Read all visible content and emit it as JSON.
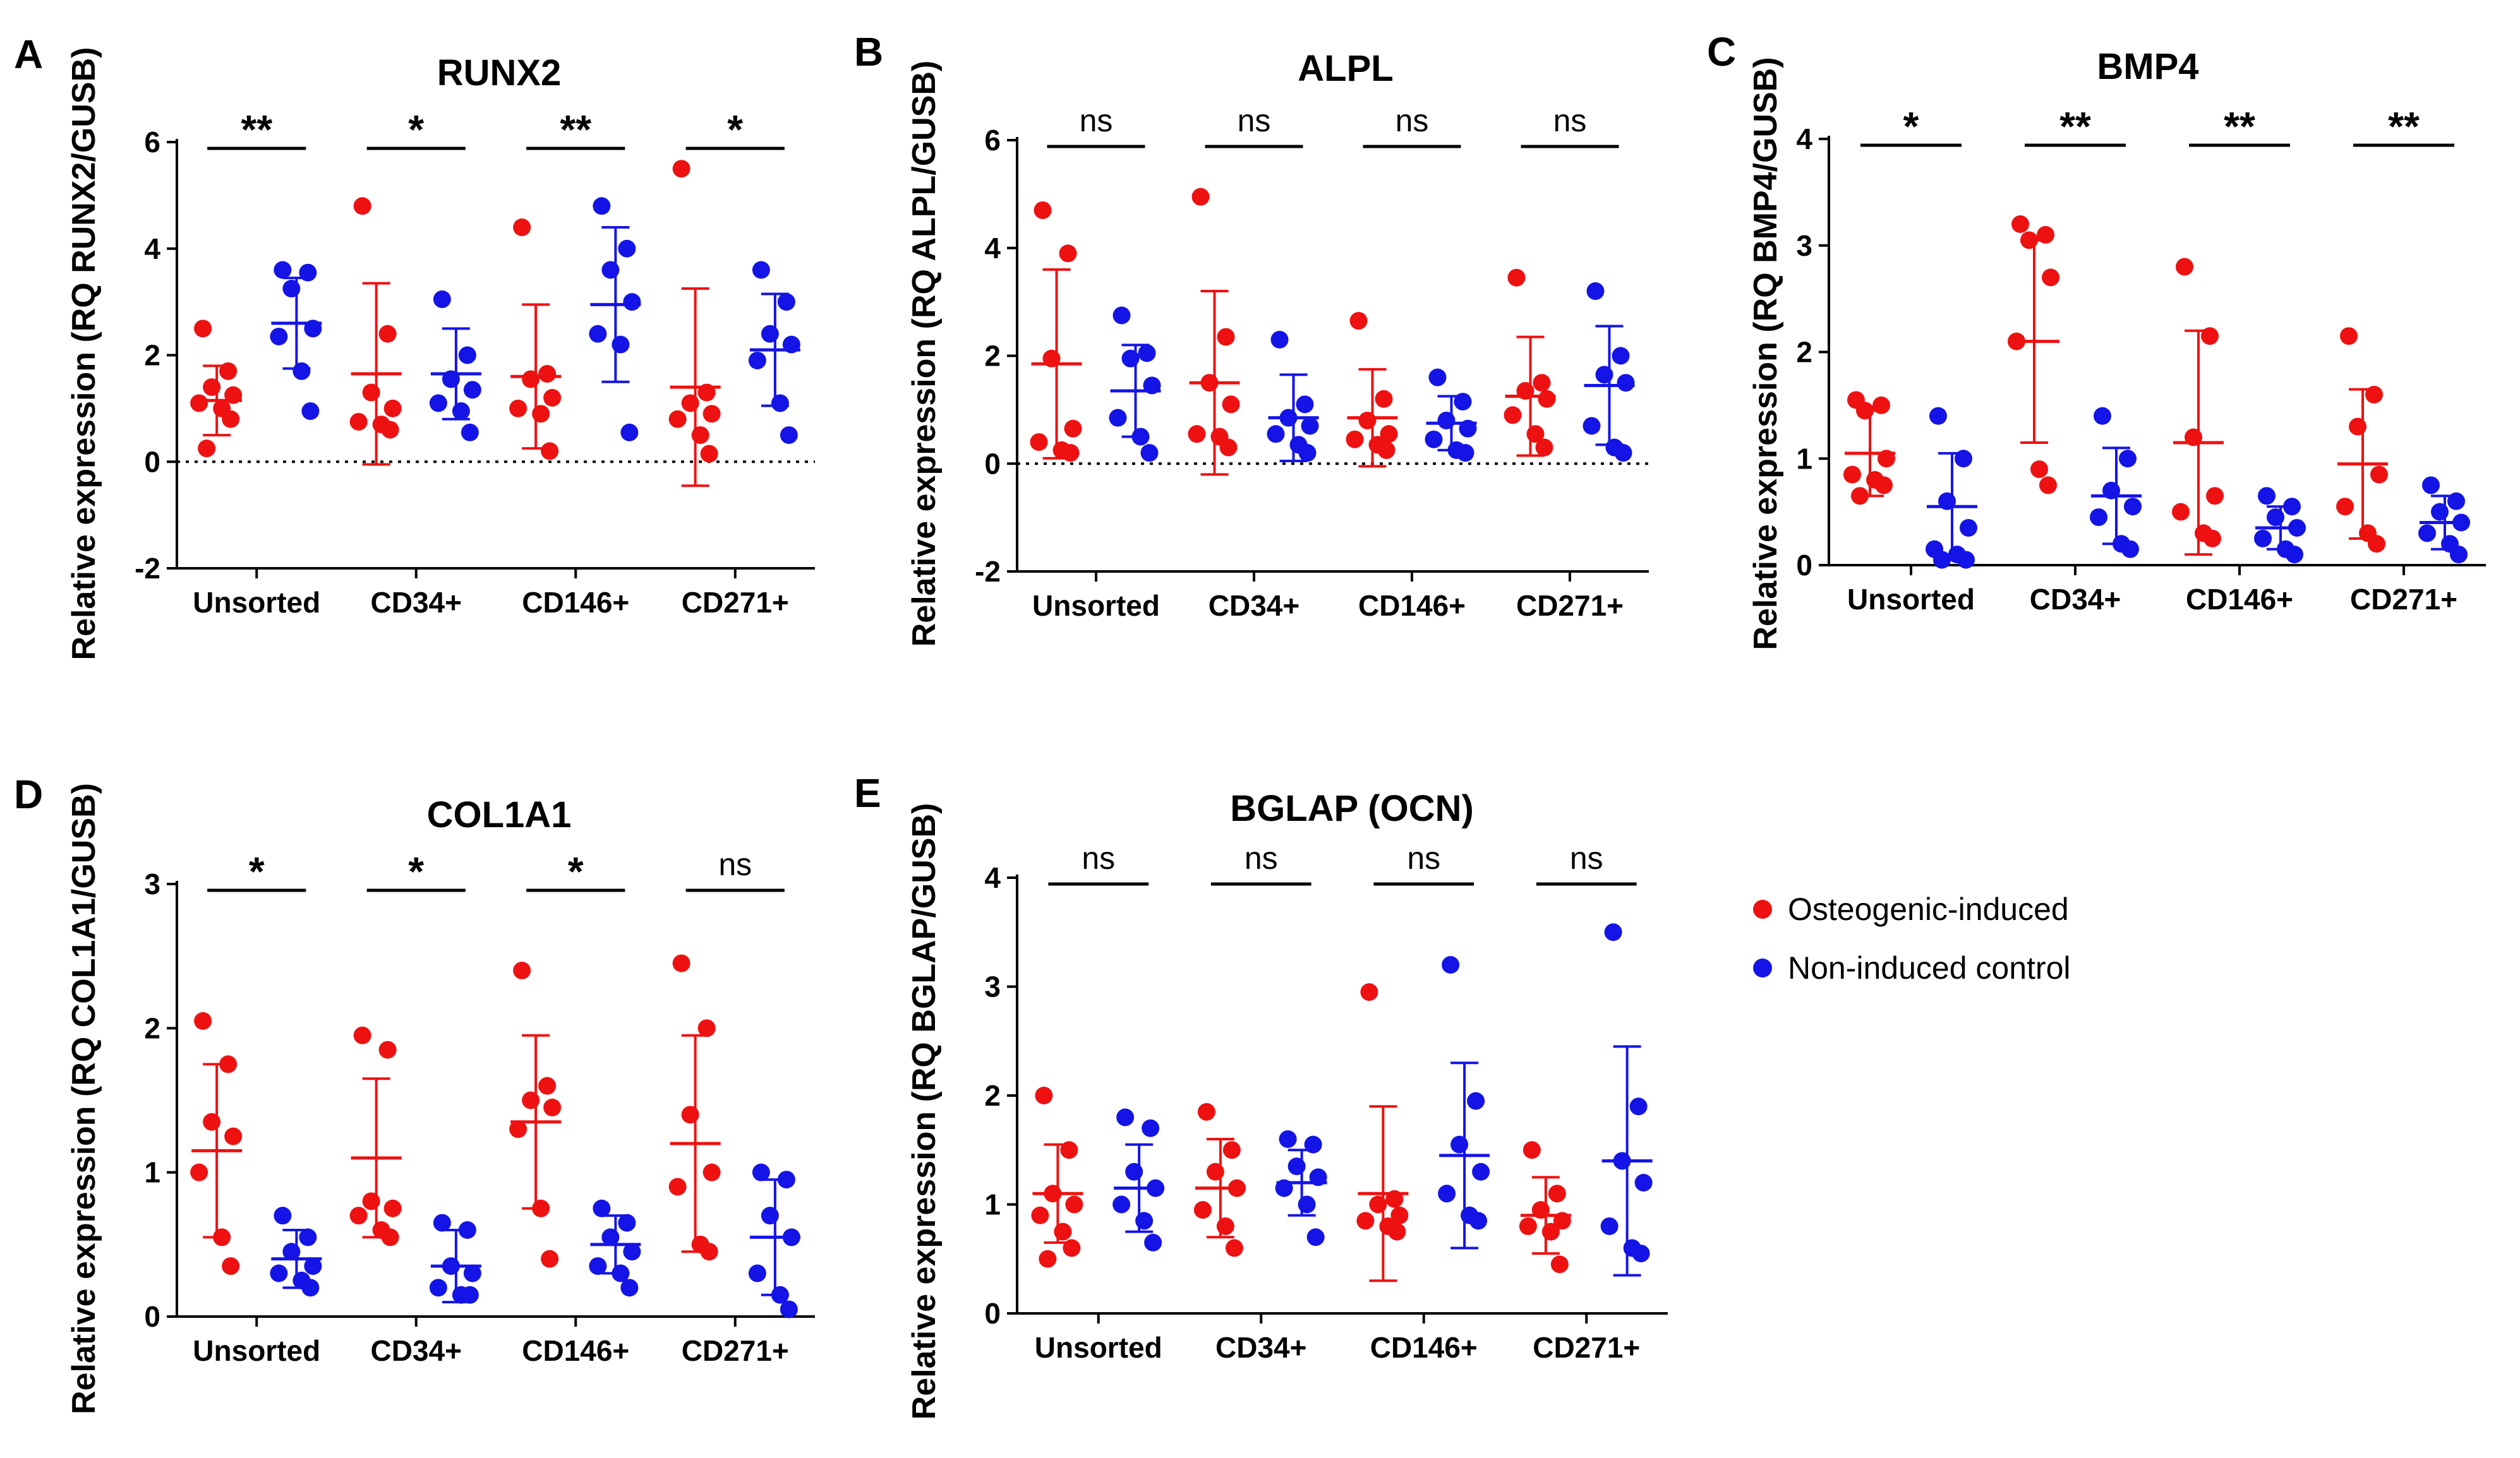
{
  "legend": {
    "entries": [
      {
        "label": "Osteogenic-induced",
        "color": "#ee1111"
      },
      {
        "label": "Non-induced control",
        "color": "#1414e6"
      }
    ]
  },
  "chart_data": [
    {
      "type": "scatter",
      "letter": "A",
      "title": "RUNX2",
      "ylabel": "Relative expression (RQ RUNX2/GUSB)",
      "ylim": [
        -2,
        6
      ],
      "yticks": [
        -2,
        0,
        2,
        4,
        6
      ],
      "zero_line": true,
      "categories": [
        "Unsorted",
        "CD34+",
        "CD146+",
        "CD271+"
      ],
      "significance": [
        "**",
        "*",
        "**",
        "*"
      ],
      "series": [
        {
          "name": "Osteogenic-induced",
          "color": "#ee1111",
          "groups": [
            {
              "mean": 1.15,
              "sd": 0.65,
              "points": [
                2.5,
                1.7,
                1.4,
                1.25,
                1.1,
                1.0,
                0.8,
                0.25
              ]
            },
            {
              "mean": 1.65,
              "sd": 1.7,
              "points": [
                4.8,
                2.4,
                1.3,
                1.0,
                0.75,
                0.7,
                0.6
              ]
            },
            {
              "mean": 1.6,
              "sd": 1.35,
              "points": [
                4.4,
                1.65,
                1.55,
                1.2,
                1.0,
                0.9,
                0.2
              ]
            },
            {
              "mean": 1.4,
              "sd": 1.85,
              "points": [
                5.5,
                1.3,
                1.1,
                0.9,
                0.8,
                0.5,
                0.15
              ]
            }
          ]
        },
        {
          "name": "Non-induced control",
          "color": "#1414e6",
          "groups": [
            {
              "mean": 2.6,
              "sd": 0.85,
              "points": [
                3.6,
                3.55,
                3.25,
                2.5,
                2.35,
                1.7,
                0.95
              ]
            },
            {
              "mean": 1.65,
              "sd": 0.85,
              "points": [
                3.05,
                2.0,
                1.55,
                1.35,
                1.1,
                0.95,
                0.55
              ]
            },
            {
              "mean": 2.95,
              "sd": 1.45,
              "points": [
                4.8,
                4.0,
                3.6,
                3.0,
                2.4,
                2.2,
                0.55
              ]
            },
            {
              "mean": 2.1,
              "sd": 1.05,
              "points": [
                3.6,
                3.0,
                2.4,
                2.2,
                1.9,
                1.1,
                0.5
              ]
            }
          ]
        }
      ]
    },
    {
      "type": "scatter",
      "letter": "B",
      "title": "ALPL",
      "ylabel": "Relative expression (RQ ALPL/GUSB)",
      "ylim": [
        -2,
        6
      ],
      "yticks": [
        -2,
        0,
        2,
        4,
        6
      ],
      "zero_line": true,
      "categories": [
        "Unsorted",
        "CD34+",
        "CD146+",
        "CD271+"
      ],
      "significance": [
        "ns",
        "ns",
        "ns",
        "ns"
      ],
      "series": [
        {
          "name": "Osteogenic-induced",
          "color": "#ee1111",
          "groups": [
            {
              "mean": 1.85,
              "sd": 1.75,
              "points": [
                4.7,
                3.9,
                1.95,
                0.65,
                0.4,
                0.25,
                0.2
              ]
            },
            {
              "mean": 1.5,
              "sd": 1.7,
              "points": [
                4.95,
                2.35,
                1.5,
                1.1,
                0.55,
                0.5,
                0.3
              ]
            },
            {
              "mean": 0.85,
              "sd": 0.9,
              "points": [
                2.65,
                1.2,
                0.8,
                0.55,
                0.45,
                0.35,
                0.25
              ]
            },
            {
              "mean": 1.25,
              "sd": 1.1,
              "points": [
                3.45,
                1.5,
                1.35,
                1.2,
                0.9,
                0.55,
                0.3
              ]
            }
          ]
        },
        {
          "name": "Non-induced control",
          "color": "#1414e6",
          "groups": [
            {
              "mean": 1.35,
              "sd": 0.85,
              "points": [
                2.75,
                2.05,
                1.95,
                1.45,
                0.85,
                0.5,
                0.2
              ]
            },
            {
              "mean": 0.85,
              "sd": 0.8,
              "points": [
                2.3,
                1.1,
                0.85,
                0.7,
                0.55,
                0.35,
                0.2
              ]
            },
            {
              "mean": 0.75,
              "sd": 0.5,
              "points": [
                1.6,
                1.15,
                0.8,
                0.65,
                0.45,
                0.25,
                0.2
              ]
            },
            {
              "mean": 1.45,
              "sd": 1.1,
              "points": [
                3.2,
                2.0,
                1.65,
                1.5,
                0.7,
                0.3,
                0.2
              ]
            }
          ]
        }
      ]
    },
    {
      "type": "scatter",
      "letter": "C",
      "title": "BMP4",
      "ylabel": "Relative expression (RQ BMP4/GUSB)",
      "ylim": [
        0,
        4
      ],
      "yticks": [
        0,
        1,
        2,
        3,
        4
      ],
      "zero_line": false,
      "categories": [
        "Unsorted",
        "CD34+",
        "CD146+",
        "CD271+"
      ],
      "significance": [
        "*",
        "**",
        "**",
        "**"
      ],
      "series": [
        {
          "name": "Osteogenic-induced",
          "color": "#ee1111",
          "groups": [
            {
              "mean": 1.05,
              "sd": 0.4,
              "points": [
                1.55,
                1.5,
                1.45,
                1.0,
                0.85,
                0.8,
                0.75,
                0.65
              ]
            },
            {
              "mean": 2.1,
              "sd": 0.95,
              "points": [
                3.2,
                3.1,
                3.05,
                2.7,
                2.1,
                0.9,
                0.75
              ]
            },
            {
              "mean": 1.15,
              "sd": 1.05,
              "points": [
                2.8,
                2.15,
                1.2,
                0.65,
                0.5,
                0.3,
                0.25
              ]
            },
            {
              "mean": 0.95,
              "sd": 0.7,
              "points": [
                2.15,
                1.6,
                1.3,
                0.85,
                0.55,
                0.3,
                0.2
              ]
            }
          ]
        },
        {
          "name": "Non-induced control",
          "color": "#1414e6",
          "groups": [
            {
              "mean": 0.55,
              "sd": 0.5,
              "points": [
                1.4,
                1.0,
                0.6,
                0.35,
                0.15,
                0.1,
                0.05,
                0.05
              ]
            },
            {
              "mean": 0.65,
              "sd": 0.45,
              "points": [
                1.4,
                1.0,
                0.7,
                0.55,
                0.45,
                0.2,
                0.15
              ]
            },
            {
              "mean": 0.35,
              "sd": 0.2,
              "points": [
                0.65,
                0.55,
                0.45,
                0.35,
                0.25,
                0.15,
                0.1
              ]
            },
            {
              "mean": 0.4,
              "sd": 0.25,
              "points": [
                0.75,
                0.6,
                0.5,
                0.4,
                0.3,
                0.2,
                0.1
              ]
            }
          ]
        }
      ]
    },
    {
      "type": "scatter",
      "letter": "D",
      "title": "COL1A1",
      "ylabel": "Relative expression (RQ COL1A1/GUSB)",
      "ylim": [
        0,
        3
      ],
      "yticks": [
        0,
        1,
        2,
        3
      ],
      "zero_line": false,
      "categories": [
        "Unsorted",
        "CD34+",
        "CD146+",
        "CD271+"
      ],
      "significance": [
        "*",
        "*",
        "*",
        "ns"
      ],
      "series": [
        {
          "name": "Osteogenic-induced",
          "color": "#ee1111",
          "groups": [
            {
              "mean": 1.15,
              "sd": 0.6,
              "points": [
                2.05,
                1.75,
                1.35,
                1.25,
                1.0,
                0.55,
                0.35
              ]
            },
            {
              "mean": 1.1,
              "sd": 0.55,
              "points": [
                1.95,
                1.85,
                0.8,
                0.75,
                0.7,
                0.6,
                0.55
              ]
            },
            {
              "mean": 1.35,
              "sd": 0.6,
              "points": [
                2.4,
                1.6,
                1.5,
                1.45,
                1.3,
                0.75,
                0.4
              ]
            },
            {
              "mean": 1.2,
              "sd": 0.75,
              "points": [
                2.45,
                2.0,
                1.4,
                1.0,
                0.9,
                0.5,
                0.45
              ]
            }
          ]
        },
        {
          "name": "Non-induced control",
          "color": "#1414e6",
          "groups": [
            {
              "mean": 0.4,
              "sd": 0.2,
              "points": [
                0.7,
                0.55,
                0.45,
                0.35,
                0.3,
                0.25,
                0.2
              ]
            },
            {
              "mean": 0.35,
              "sd": 0.25,
              "points": [
                0.65,
                0.6,
                0.35,
                0.3,
                0.2,
                0.15,
                0.15
              ]
            },
            {
              "mean": 0.5,
              "sd": 0.2,
              "points": [
                0.75,
                0.65,
                0.55,
                0.45,
                0.35,
                0.3,
                0.2
              ]
            },
            {
              "mean": 0.55,
              "sd": 0.4,
              "points": [
                1.0,
                0.95,
                0.7,
                0.55,
                0.3,
                0.15,
                0.05
              ]
            }
          ]
        }
      ]
    },
    {
      "type": "scatter",
      "letter": "E",
      "title": "BGLAP (OCN)",
      "ylabel": "Relative expression (RQ BGLAP/GUSB)",
      "ylim": [
        0,
        4
      ],
      "yticks": [
        0,
        1,
        2,
        3,
        4
      ],
      "zero_line": false,
      "categories": [
        "Unsorted",
        "CD34+",
        "CD146+",
        "CD271+"
      ],
      "significance": [
        "ns",
        "ns",
        "ns",
        "ns"
      ],
      "series": [
        {
          "name": "Osteogenic-induced",
          "color": "#ee1111",
          "groups": [
            {
              "mean": 1.1,
              "sd": 0.45,
              "points": [
                2.0,
                1.5,
                1.1,
                1.0,
                0.9,
                0.75,
                0.6,
                0.5
              ]
            },
            {
              "mean": 1.15,
              "sd": 0.45,
              "points": [
                1.85,
                1.5,
                1.3,
                1.15,
                0.95,
                0.8,
                0.6
              ]
            },
            {
              "mean": 1.1,
              "sd": 0.8,
              "points": [
                2.95,
                1.05,
                1.0,
                0.9,
                0.85,
                0.8,
                0.75
              ]
            },
            {
              "mean": 0.9,
              "sd": 0.35,
              "points": [
                1.5,
                1.1,
                0.95,
                0.85,
                0.8,
                0.75,
                0.45
              ]
            }
          ]
        },
        {
          "name": "Non-induced control",
          "color": "#1414e6",
          "groups": [
            {
              "mean": 1.15,
              "sd": 0.4,
              "points": [
                1.8,
                1.7,
                1.3,
                1.15,
                1.0,
                0.85,
                0.65
              ]
            },
            {
              "mean": 1.2,
              "sd": 0.3,
              "points": [
                1.6,
                1.55,
                1.35,
                1.25,
                1.15,
                1.0,
                0.7
              ]
            },
            {
              "mean": 1.45,
              "sd": 0.85,
              "points": [
                3.2,
                1.95,
                1.55,
                1.3,
                1.1,
                0.9,
                0.85
              ]
            },
            {
              "mean": 1.4,
              "sd": 1.05,
              "points": [
                3.5,
                1.9,
                1.4,
                1.2,
                0.8,
                0.6,
                0.55
              ]
            }
          ]
        }
      ]
    }
  ]
}
